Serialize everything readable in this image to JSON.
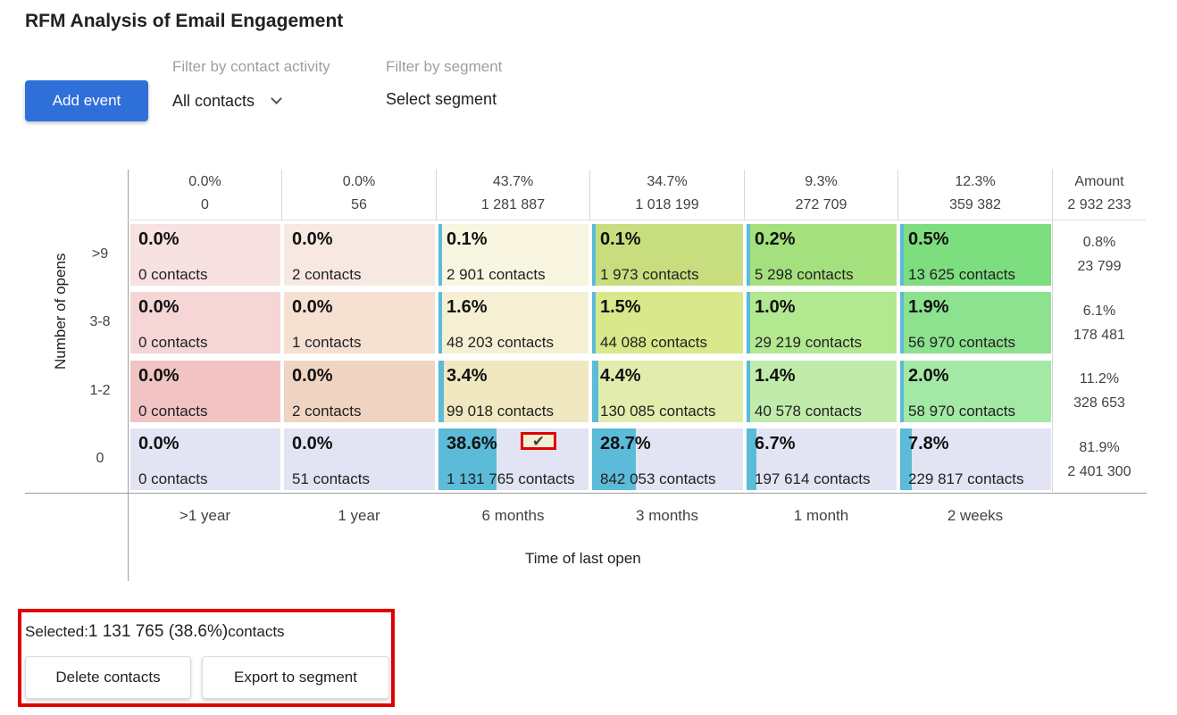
{
  "page": {
    "title": "RFM Analysis of Email Engagement"
  },
  "toolbar": {
    "add_event_label": "Add event",
    "filter_activity": {
      "label": "Filter by contact activity",
      "value": "All contacts"
    },
    "filter_segment": {
      "label": "Filter by segment",
      "value": "Select segment"
    }
  },
  "matrix": {
    "y_axis_label": "Number of opens",
    "x_axis_label": "Time of last open",
    "columns": [
      {
        "label": ">1 year",
        "pct": "0.0%",
        "amount": "0"
      },
      {
        "label": "1 year",
        "pct": "0.0%",
        "amount": "56"
      },
      {
        "label": "6 months",
        "pct": "43.7%",
        "amount": "1 281 887"
      },
      {
        "label": "3 months",
        "pct": "34.7%",
        "amount": "1 018 199"
      },
      {
        "label": "1 month",
        "pct": "9.3%",
        "amount": "272 709"
      },
      {
        "label": "2 weeks",
        "pct": "12.3%",
        "amount": "359 382"
      }
    ],
    "amount_header": {
      "title": "Amount",
      "value": "2 932 233"
    },
    "rows": [
      {
        "label": ">9",
        "total_pct": "0.8%",
        "total_amount": "23 799",
        "cells": [
          {
            "pct": "0.0%",
            "count": "0 contacts",
            "fill": 0,
            "color": "#f7e1e1"
          },
          {
            "pct": "0.0%",
            "count": "2 contacts",
            "fill": 0,
            "color": "#f7e9e1"
          },
          {
            "pct": "0.1%",
            "count": "2 901 contacts",
            "fill": 0.1,
            "color": "#f8f5e0"
          },
          {
            "pct": "0.1%",
            "count": "1 973 contacts",
            "fill": 0.1,
            "color": "#c8de7e"
          },
          {
            "pct": "0.2%",
            "count": "5 298 contacts",
            "fill": 0.2,
            "color": "#a5e07e"
          },
          {
            "pct": "0.5%",
            "count": "13 625 contacts",
            "fill": 0.5,
            "color": "#7dde80"
          }
        ]
      },
      {
        "label": "3-8",
        "total_pct": "6.1%",
        "total_amount": "178 481",
        "cells": [
          {
            "pct": "0.0%",
            "count": "0 contacts",
            "fill": 0,
            "color": "#f5d5d5"
          },
          {
            "pct": "0.0%",
            "count": "1 contacts",
            "fill": 0,
            "color": "#f5e0d2"
          },
          {
            "pct": "1.6%",
            "count": "48 203 contacts",
            "fill": 1.6,
            "color": "#f5f0d3"
          },
          {
            "pct": "1.5%",
            "count": "44 088 contacts",
            "fill": 1.5,
            "color": "#d8e88a"
          },
          {
            "pct": "1.0%",
            "count": "29 219 contacts",
            "fill": 1.0,
            "color": "#b2e890"
          },
          {
            "pct": "1.9%",
            "count": "56 970 contacts",
            "fill": 1.9,
            "color": "#8ce28e"
          }
        ]
      },
      {
        "label": "1-2",
        "total_pct": "11.2%",
        "total_amount": "328 653",
        "cells": [
          {
            "pct": "0.0%",
            "count": "0 contacts",
            "fill": 0,
            "color": "#f1c3c3"
          },
          {
            "pct": "0.0%",
            "count": "2 contacts",
            "fill": 0,
            "color": "#f0d4c2"
          },
          {
            "pct": "3.4%",
            "count": "99 018 contacts",
            "fill": 3.4,
            "color": "#efe8c0"
          },
          {
            "pct": "4.4%",
            "count": "130 085 contacts",
            "fill": 4.4,
            "color": "#e2ecac"
          },
          {
            "pct": "1.4%",
            "count": "40 578 contacts",
            "fill": 1.4,
            "color": "#c1ebaa"
          },
          {
            "pct": "2.0%",
            "count": "58 970 contacts",
            "fill": 2.0,
            "color": "#a4e8a6"
          }
        ]
      },
      {
        "label": "0",
        "total_pct": "81.9%",
        "total_amount": "2 401 300",
        "cells": [
          {
            "pct": "0.0%",
            "count": "0 contacts",
            "fill": 0,
            "color": "#e2e4f4"
          },
          {
            "pct": "0.0%",
            "count": "51 contacts",
            "fill": 0,
            "color": "#e2e4f4"
          },
          {
            "pct": "38.6%",
            "count": "1 131 765 contacts",
            "fill": 38.6,
            "color": "#e2e4f4",
            "selected": true
          },
          {
            "pct": "28.7%",
            "count": "842 053 contacts",
            "fill": 28.7,
            "color": "#e2e4f4"
          },
          {
            "pct": "6.7%",
            "count": "197 614 contacts",
            "fill": 6.7,
            "color": "#e2e4f4"
          },
          {
            "pct": "7.8%",
            "count": "229 817 contacts",
            "fill": 7.8,
            "color": "#e2e4f4"
          }
        ]
      }
    ]
  },
  "selection": {
    "prefix": "Selected:",
    "value": "1 131 765 (38.6%)",
    "suffix": "contacts",
    "delete_label": "Delete contacts",
    "export_label": "Export to segment"
  },
  "colors": {
    "primary": "#2f6fd9",
    "bar": "#5bbbd8",
    "highlight": "#e00000"
  }
}
